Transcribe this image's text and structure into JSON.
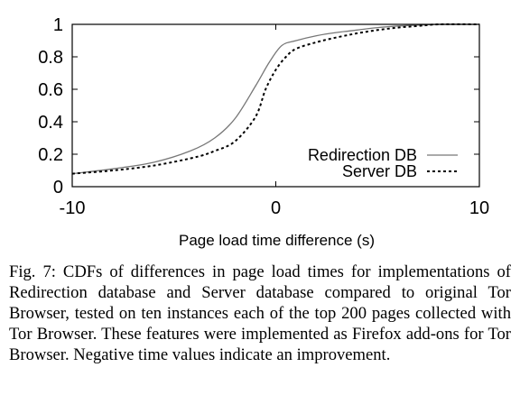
{
  "chart_data": {
    "type": "line",
    "title": "",
    "xlabel": "Page load time difference (s)",
    "ylabel": "",
    "xlim": [
      -10,
      10
    ],
    "ylim": [
      0,
      1
    ],
    "x_ticks": [
      -10,
      0,
      10
    ],
    "x_tick_labels": [
      "-10",
      "0",
      "10"
    ],
    "y_ticks": [
      0,
      0.2,
      0.4,
      0.6,
      0.8,
      1
    ],
    "y_tick_labels": [
      "0",
      "0.2",
      "0.4",
      "0.6",
      "0.8",
      "1"
    ],
    "grid": false,
    "legend_position": "bottom-right",
    "series": [
      {
        "name": "Redirection DB",
        "style": "solid",
        "color": "#777777",
        "points": [
          [
            -10,
            0.08
          ],
          [
            -8,
            0.11
          ],
          [
            -6,
            0.15
          ],
          [
            -4.2,
            0.22
          ],
          [
            -3,
            0.3
          ],
          [
            -2,
            0.42
          ],
          [
            -1,
            0.62
          ],
          [
            -0.3,
            0.77
          ],
          [
            0.3,
            0.87
          ],
          [
            1,
            0.9
          ],
          [
            2,
            0.93
          ],
          [
            3,
            0.95
          ],
          [
            4,
            0.965
          ],
          [
            5,
            0.98
          ],
          [
            6,
            0.99
          ],
          [
            7,
            0.995
          ],
          [
            8,
            1.0
          ],
          [
            10,
            1.0
          ]
        ]
      },
      {
        "name": "Server DB",
        "style": "dotted",
        "color": "#000000",
        "points": [
          [
            -10,
            0.08
          ],
          [
            -8,
            0.1
          ],
          [
            -6,
            0.13
          ],
          [
            -4,
            0.18
          ],
          [
            -3,
            0.22
          ],
          [
            -2,
            0.28
          ],
          [
            -1,
            0.43
          ],
          [
            -0.5,
            0.6
          ],
          [
            0,
            0.72
          ],
          [
            0.5,
            0.8
          ],
          [
            1,
            0.85
          ],
          [
            2,
            0.89
          ],
          [
            3,
            0.92
          ],
          [
            4,
            0.945
          ],
          [
            5,
            0.965
          ],
          [
            6,
            0.98
          ],
          [
            7,
            0.99
          ],
          [
            8,
            1.0
          ],
          [
            10,
            1.0
          ]
        ]
      }
    ]
  },
  "caption": "Fig. 7: CDFs of differences in page load times for implementations of Redirection database and Server database compared to original Tor Browser, tested on ten instances each of the top 200 pages collected with Tor Browser. These features were implemented as Firefox add-ons for Tor Browser. Negative time values indicate an improvement."
}
